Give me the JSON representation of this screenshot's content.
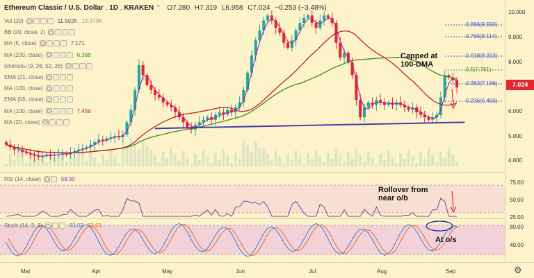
{
  "header": {
    "symbol_title": "Ethereum Classic / U.S. Dollar",
    "interval": "1D",
    "exchange": "KRAKEN",
    "ohlc": {
      "o": "O7.280",
      "h": "H7.319",
      "l": "L6.958",
      "c": "C7.024",
      "chg": "−0.253 (−3.48%)"
    },
    "collapse_icon": "chevron-up-icon"
  },
  "indicators": [
    {
      "label": "Vol (20)",
      "value": "11.502K",
      "value2": "19.979K",
      "color": "#555555"
    },
    {
      "label": "BB (20, close, 2)",
      "value": "",
      "color": "#555555"
    },
    {
      "label": "MA (5, close)",
      "value": "7.171",
      "color": "#a020a0"
    },
    {
      "label": "MA (200, close)",
      "value": "6.368",
      "color": "#3c8c1e"
    },
    {
      "label": "Ichimoku (9, 26, 52, 26)",
      "value": "",
      "color": "#555555"
    },
    {
      "label": "EMA (21, close)",
      "value": "",
      "color": "#555555"
    },
    {
      "label": "MA (100, close)",
      "value": "",
      "color": "#555555"
    },
    {
      "label": "EMA (55, close)",
      "value": "",
      "color": "#555555"
    },
    {
      "label": "MA (100, close)",
      "value": "7.459",
      "color": "#c0202a"
    },
    {
      "label": "MA (20, close)",
      "value": "",
      "color": "#555555"
    }
  ],
  "price_axis": {
    "ticks": [
      "10.000",
      "9.000",
      "8.000",
      "7.000",
      "6.000",
      "5.000",
      "4.000"
    ],
    "last_price": "7.024",
    "last_price_color": "#e3262f"
  },
  "fib_levels": [
    {
      "label": "0.886(9.590)",
      "color": "#3f53c9"
    },
    {
      "label": "0.786(9.114)",
      "color": "#3f53c9"
    },
    {
      "label": "0.618(8.313)",
      "color": "#3f53c9"
    },
    {
      "label": "0.5(7.751)",
      "color": "#3c8c1e"
    },
    {
      "label": "0.382(7.189)",
      "color": "#3f53c9"
    },
    {
      "label": "0.236(6.493)",
      "color": "#3f53c9"
    }
  ],
  "annotations": {
    "capped_line1": "Capped at",
    "capped_line2": "100-DMA",
    "rollover_line1": "Rollover from",
    "rollover_line2": "near o/b",
    "at_os": "At o/s"
  },
  "rsi": {
    "label": "RSI (14, close)",
    "value": "58.90",
    "ticks": [
      "75.00",
      "50.00",
      "25.00"
    ]
  },
  "stoch": {
    "label": "Stoch (14, 3, 3)",
    "k": "83.02",
    "d": "82.63",
    "ticks": [
      "80.00",
      "40.00"
    ]
  },
  "time_axis": {
    "labels": [
      "Mar",
      "Apr",
      "May",
      "Jun",
      "Jul",
      "Aug",
      "Sep"
    ]
  },
  "settings_icon": "gear-icon",
  "colors": {
    "background": "#fdf3cb",
    "up_candle": "#26a69a",
    "down_candle": "#e3262f",
    "ma200": "#3c8c1e",
    "ma100": "#c0202a",
    "ma5": "#a020a0",
    "support_line": "#4a3aa8",
    "rsi_line": "#8a3aa8",
    "stoch_k": "#3f7fd0",
    "stoch_d": "#e07030"
  },
  "chart_data": {
    "type": "candlestick",
    "x_labels": [
      "Mar",
      "Apr",
      "May",
      "Jun",
      "Jul",
      "Aug",
      "Sep"
    ],
    "ylim": [
      3.6,
      10.3
    ],
    "closes": [
      4.7,
      4.6,
      4.5,
      4.5,
      4.4,
      4.35,
      4.3,
      4.25,
      4.2,
      4.25,
      4.3,
      4.25,
      4.3,
      4.3,
      4.35,
      4.3,
      4.4,
      4.45,
      4.5,
      4.55,
      4.6,
      4.7,
      4.8,
      4.9,
      4.85,
      4.95,
      5.0,
      5.05,
      5.0,
      5.1,
      5.6,
      6.1,
      6.9,
      7.9,
      7.5,
      7.1,
      6.9,
      6.7,
      6.6,
      6.4,
      6.3,
      6.2,
      6.0,
      5.8,
      5.6,
      5.4,
      5.3,
      5.5,
      5.6,
      5.7,
      5.8,
      5.7,
      5.9,
      6.0,
      5.9,
      6.1,
      6.0,
      6.2,
      6.4,
      6.9,
      7.6,
      8.3,
      8.9,
      9.3,
      9.7,
      9.9,
      9.7,
      9.4,
      9.2,
      8.8,
      8.6,
      8.9,
      9.3,
      9.6,
      9.8,
      9.9,
      9.6,
      9.4,
      9.7,
      9.9,
      9.8,
      9.6,
      8.8,
      8.2,
      8.4,
      8.0,
      7.5,
      6.5,
      5.8,
      6.2,
      6.4,
      6.3,
      6.5,
      6.4,
      6.3,
      6.4,
      6.3,
      6.4,
      6.3,
      6.2,
      6.1,
      6.2,
      6.0,
      5.9,
      5.8,
      5.7,
      5.8,
      5.9,
      6.6,
      7.5,
      7.4,
      7.3,
      7.0
    ],
    "support_line": [
      [
        0.29,
        5.35
      ],
      [
        0.87,
        5.6
      ]
    ],
    "note": "close prices estimated from chart; MA overlays approximate"
  }
}
